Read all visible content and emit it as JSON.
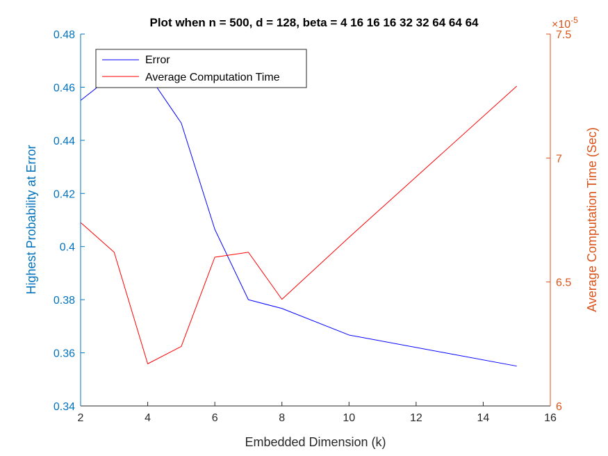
{
  "chart_data": {
    "type": "line",
    "title": "Plot when n = 500, d = 128, beta = 4  16  16  16  32  32  64  64  64",
    "xlabel": "Embedded Dimension (k)",
    "ylabel_left": "Highest Probability at Error",
    "ylabel_right": "Average Computation Time (Sec)",
    "xlim": [
      2,
      16
    ],
    "ylim_left": [
      0.34,
      0.48
    ],
    "ylim_right": [
      6.0,
      7.5
    ],
    "right_exponent_label": "×10",
    "right_exponent_power": "-5",
    "x_ticks": [
      "2",
      "4",
      "6",
      "8",
      "10",
      "12",
      "14",
      "16"
    ],
    "y_left_ticks": [
      "0.34",
      "0.36",
      "0.38",
      "0.4",
      "0.42",
      "0.44",
      "0.46",
      "0.48"
    ],
    "y_right_ticks": [
      "6",
      "6.5",
      "7",
      "7.5"
    ],
    "legend_position": "top-left",
    "series": [
      {
        "name": "Error",
        "axis": "left",
        "color": "#0000FF",
        "x": [
          2,
          3,
          4,
          5,
          6,
          7,
          8,
          10,
          15
        ],
        "y": [
          0.455,
          0.465,
          0.465,
          0.4465,
          0.4065,
          0.38,
          0.3767,
          0.3667,
          0.355
        ]
      },
      {
        "name": "Average Computation Time",
        "axis": "right",
        "color": "#FF0000",
        "x": [
          2,
          3,
          4,
          5,
          6,
          7,
          8,
          10,
          15
        ],
        "y": [
          6.74,
          6.62,
          6.17,
          6.24,
          6.6,
          6.62,
          6.43,
          6.68,
          7.29
        ]
      }
    ],
    "left_axis_color": "#0072BD",
    "right_axis_color": "#D95319"
  }
}
